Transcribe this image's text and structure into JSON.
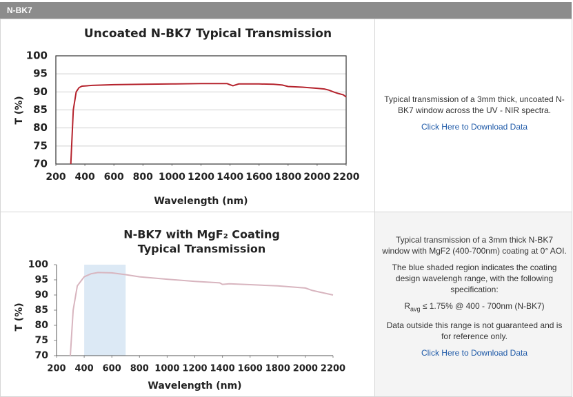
{
  "header": {
    "title": "N-BK7"
  },
  "chart_data": [
    {
      "type": "line",
      "title": "Uncoated N-BK7 Typical Transmission",
      "xlabel": "Wavelength (nm)",
      "ylabel": "T (%)",
      "x": [
        303,
        320,
        340,
        360,
        380,
        450,
        600,
        800,
        1000,
        1200,
        1300,
        1380,
        1400,
        1420,
        1460,
        1600,
        1700,
        1760,
        1800,
        1900,
        2000,
        2050,
        2080,
        2120,
        2150,
        2180,
        2200
      ],
      "values": [
        70,
        85,
        90,
        91.2,
        91.6,
        91.8,
        92,
        92.1,
        92.2,
        92.3,
        92.3,
        92.3,
        92,
        91.7,
        92.2,
        92.2,
        92.1,
        91.9,
        91.5,
        91.3,
        91,
        90.8,
        90.5,
        89.9,
        89.5,
        89.2,
        88.6
      ],
      "color": "#b5232d",
      "xlim": [
        200,
        2200
      ],
      "ylim": [
        70,
        100
      ],
      "xticks": [
        200,
        400,
        600,
        800,
        1000,
        1200,
        1400,
        1600,
        1800,
        2000,
        2200
      ],
      "yticks": [
        70,
        75,
        80,
        85,
        90,
        95,
        100
      ],
      "grid": true
    },
    {
      "type": "line",
      "title": [
        "N-BK7 with MgF₂ Coating",
        "Typical Transmission"
      ],
      "xlabel": "Wavelength (nm)",
      "ylabel": "T (%)",
      "x": [
        300,
        320,
        350,
        400,
        450,
        500,
        600,
        700,
        800,
        1000,
        1200,
        1380,
        1400,
        1450,
        1600,
        1800,
        2000,
        2050,
        2100,
        2200
      ],
      "values": [
        70,
        85,
        93,
        96,
        97,
        97.4,
        97.3,
        96.7,
        96,
        95.2,
        94.5,
        94,
        93.5,
        93.7,
        93.4,
        93,
        92.3,
        91.5,
        91,
        90
      ],
      "color": "#d8b5bf",
      "shaded_region": [
        400,
        700
      ],
      "shade_color": "#dce9f5",
      "xlim": [
        200,
        2200
      ],
      "ylim": [
        70,
        100
      ],
      "xticks": [
        200,
        400,
        600,
        800,
        1000,
        1200,
        1400,
        1600,
        1800,
        2000,
        2200
      ],
      "yticks": [
        70,
        75,
        80,
        85,
        90,
        95,
        100
      ],
      "grid": false
    }
  ],
  "descriptions": [
    {
      "paragraphs": [
        "Typical transmission of a 3mm thick, uncoated N-BK7 window across the UV - NIR spectra."
      ],
      "link": "Click Here to Download Data"
    },
    {
      "paragraphs": [
        "Typical transmission of a 3mm thick N-BK7 window with MgF2 (400-700nm) coating at 0° AOI.",
        "The blue shaded region indicates the coating design wavelengh range, with the following specification:"
      ],
      "spec": {
        "symbol": "R",
        "subscript": "avg",
        "text": " ≤ 1.75% @ 400 - 700nm (N-BK7)"
      },
      "note": "Data outside this range is not guaranteed and is for reference only.",
      "link": "Click Here to Download Data"
    }
  ]
}
